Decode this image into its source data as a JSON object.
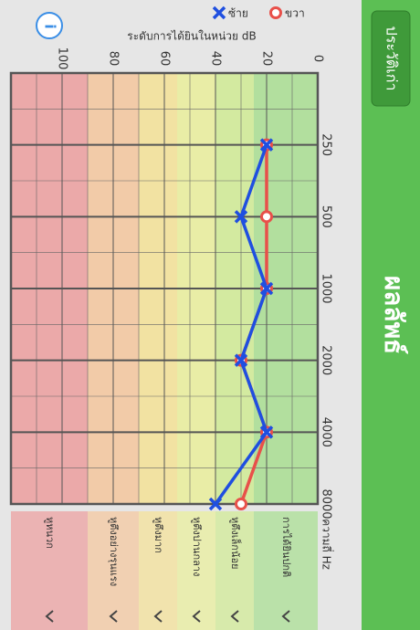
{
  "header": {
    "title": "ผลลัพธ์",
    "button": "ประวัติเก่า"
  },
  "chart_data": {
    "type": "line",
    "ylabel": "ระดับการได้ยินในหน่วย dB",
    "xlabel": "ความถี่ Hz",
    "x": [
      250,
      500,
      1000,
      2000,
      4000,
      8000
    ],
    "xlim": [
      125,
      8000
    ],
    "xticks": [
      250,
      500,
      1000,
      2000,
      4000,
      8000
    ],
    "xscale": "log2",
    "ylim": [
      0,
      120
    ],
    "yticks": [
      0,
      20,
      40,
      60,
      80,
      100
    ],
    "yinverted": true,
    "grid": true,
    "series": [
      {
        "name": "ซ้าย",
        "color": "#1f4fe0",
        "marker": "x",
        "values": [
          20,
          30,
          20,
          30,
          20,
          40
        ]
      },
      {
        "name": "ขวา",
        "color": "#e8504a",
        "marker": "o",
        "values": [
          20,
          20,
          20,
          30,
          20,
          30
        ]
      }
    ],
    "hearing_levels": [
      {
        "label": "การได้ยินปกติ",
        "range": [
          0,
          25
        ],
        "color": "#b2df9e"
      },
      {
        "label": "หูตึงเล็กน้อย",
        "range": [
          25,
          40
        ],
        "color": "#d3eaa0"
      },
      {
        "label": "หูตึงปานกลาง",
        "range": [
          40,
          55
        ],
        "color": "#e9eda6"
      },
      {
        "label": "หูตึงมาก",
        "range": [
          55,
          70
        ],
        "color": "#f2e2a2"
      },
      {
        "label": "หูตึงอย่างรุนแรง",
        "range": [
          70,
          90
        ],
        "color": "#f2cba8"
      },
      {
        "label": "หูหนวก",
        "range": [
          90,
          120
        ],
        "color": "#eba9a9"
      }
    ]
  }
}
